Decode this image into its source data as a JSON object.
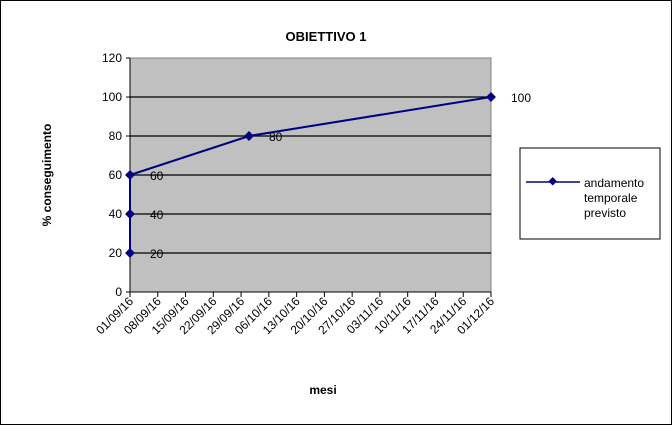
{
  "chart_data": {
    "type": "line",
    "title": "OBIETTIVO 1",
    "xlabel": "mesi",
    "ylabel": "% conseguimento",
    "ylim": [
      0,
      120
    ],
    "yticks": [
      0,
      20,
      40,
      60,
      80,
      100,
      120
    ],
    "xticks": [
      "01/09/16",
      "08/09/16",
      "15/09/16",
      "22/09/16",
      "29/09/16",
      "06/10/16",
      "13/10/16",
      "20/10/16",
      "27/10/16",
      "03/11/16",
      "10/11/16",
      "17/11/16",
      "24/11/16",
      "01/12/16"
    ],
    "xlim": [
      "01/09/16",
      "01/12/16"
    ],
    "grid": true,
    "legend_position": "right",
    "series": [
      {
        "name": "andamento temporale previsto",
        "color": "#000080",
        "points": [
          {
            "x": "01/09/16",
            "y": 20,
            "label": "20"
          },
          {
            "x": "01/09/16",
            "y": 40,
            "label": "40"
          },
          {
            "x": "01/09/16",
            "y": 60,
            "label": "60"
          },
          {
            "x": "01/10/16",
            "y": 80,
            "label": "80"
          },
          {
            "x": "01/12/16",
            "y": 100,
            "label": "100"
          }
        ]
      }
    ],
    "plot_background": "#c0c0c0"
  }
}
